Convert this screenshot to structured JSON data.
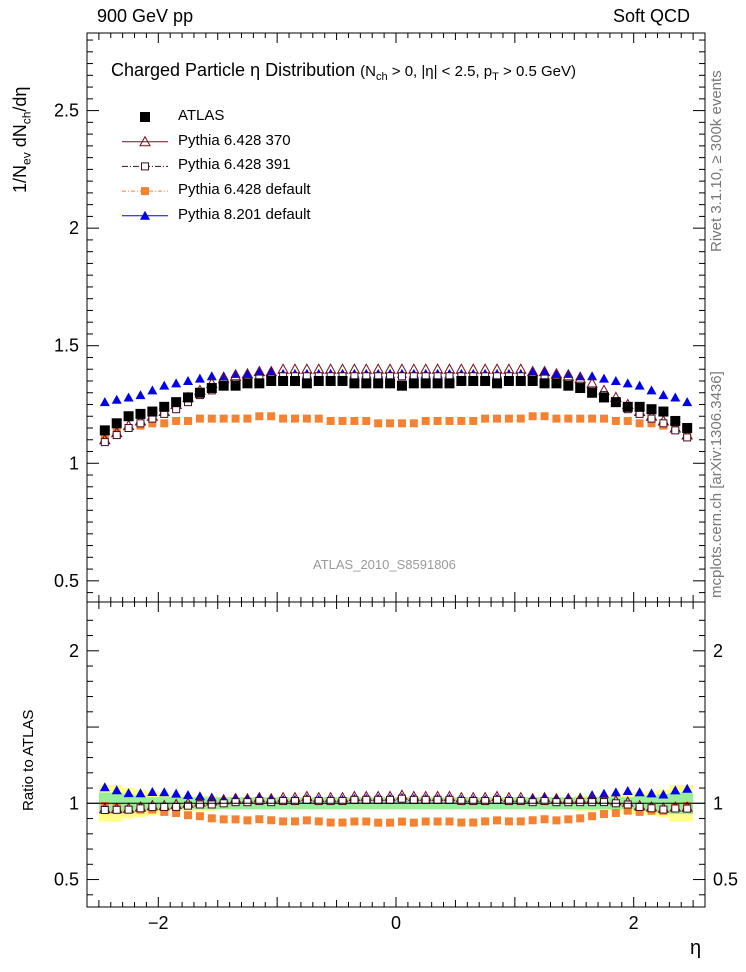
{
  "header": {
    "left": "900 GeV pp",
    "right": "Soft QCD"
  },
  "side_labels": {
    "top": "Rivet 3.1.10, ≥ 300k events",
    "bottom": "mcplots.cern.ch [arXiv:1306.3436]"
  },
  "title": {
    "main": "Charged Particle  η Distribution",
    "cut": "(N",
    "cut_sub1": "ch",
    "cut_mid": " > 0, |η| < 2.5, p",
    "cut_sub2": "T",
    "cut_end": " > 0.5 GeV)"
  },
  "watermark": "ATLAS_2010_S8591806",
  "axis_titles": {
    "main_y_pre": "1/N",
    "main_y_sub1": "ev",
    "main_y_mid": " dN",
    "main_y_sub2": "ch",
    "main_y_end": "/dη",
    "ratio_y": "Ratio to ATLAS",
    "x": "η"
  },
  "legend": [
    {
      "label": "ATLAS",
      "color": "#000000",
      "marker": "square-filled"
    },
    {
      "label": "Pythia 6.428 370",
      "color": "#7a0a1e",
      "marker": "triangle-open"
    },
    {
      "label": "Pythia 6.428 391",
      "color": "#4a0a20",
      "marker": "square-open"
    },
    {
      "label": "Pythia 6.428 default",
      "color": "#f58231",
      "marker": "square-filled"
    },
    {
      "label": "Pythia 8.201 default",
      "color": "#0000ee",
      "marker": "triangle-filled"
    }
  ],
  "chart_data": [
    {
      "type": "scatter",
      "panel": "main",
      "title": "Charged Particle  η Distribution",
      "xlabel": "η",
      "ylabel": "1/N_ev dN_ch/dη",
      "xlim": [
        -2.6,
        2.6
      ],
      "ylim": [
        0.41,
        2.83
      ],
      "yticks": [
        0.5,
        1,
        1.5,
        2,
        2.5
      ],
      "ytick_labels": [
        "0.5",
        "1",
        "1.5",
        "2",
        "2.5"
      ],
      "eta_range": [
        -2.45,
        2.45
      ],
      "n_points": 50,
      "series": [
        {
          "name": "ATLAS",
          "values": [
            1.14,
            1.17,
            1.2,
            1.21,
            1.22,
            1.24,
            1.26,
            1.28,
            1.3,
            1.32,
            1.33,
            1.33,
            1.34,
            1.34,
            1.35,
            1.35,
            1.35,
            1.34,
            1.35,
            1.35,
            1.35,
            1.34,
            1.34,
            1.34,
            1.34,
            1.33,
            1.34,
            1.34,
            1.34,
            1.34,
            1.35,
            1.35,
            1.35,
            1.34,
            1.35,
            1.35,
            1.35,
            1.34,
            1.34,
            1.33,
            1.32,
            1.3,
            1.28,
            1.26,
            1.24,
            1.24,
            1.23,
            1.22,
            1.18,
            1.15
          ]
        },
        {
          "name": "Pythia 6.428 370",
          "values": [
            1.1,
            1.13,
            1.16,
            1.18,
            1.2,
            1.22,
            1.25,
            1.28,
            1.31,
            1.34,
            1.36,
            1.37,
            1.38,
            1.39,
            1.39,
            1.4,
            1.4,
            1.4,
            1.4,
            1.4,
            1.4,
            1.4,
            1.4,
            1.4,
            1.4,
            1.4,
            1.4,
            1.4,
            1.4,
            1.4,
            1.4,
            1.4,
            1.4,
            1.4,
            1.4,
            1.4,
            1.39,
            1.39,
            1.38,
            1.37,
            1.36,
            1.34,
            1.31,
            1.28,
            1.25,
            1.22,
            1.2,
            1.18,
            1.15,
            1.12
          ]
        },
        {
          "name": "Pythia 6.428 391",
          "values": [
            1.09,
            1.12,
            1.15,
            1.17,
            1.19,
            1.21,
            1.23,
            1.26,
            1.29,
            1.31,
            1.33,
            1.34,
            1.35,
            1.36,
            1.36,
            1.37,
            1.37,
            1.37,
            1.37,
            1.37,
            1.37,
            1.37,
            1.37,
            1.37,
            1.37,
            1.37,
            1.37,
            1.37,
            1.37,
            1.37,
            1.37,
            1.37,
            1.37,
            1.37,
            1.37,
            1.37,
            1.36,
            1.36,
            1.35,
            1.34,
            1.33,
            1.31,
            1.29,
            1.26,
            1.23,
            1.21,
            1.19,
            1.17,
            1.14,
            1.11
          ]
        },
        {
          "name": "Pythia 6.428 default",
          "values": [
            1.12,
            1.14,
            1.15,
            1.16,
            1.17,
            1.17,
            1.18,
            1.18,
            1.19,
            1.19,
            1.19,
            1.19,
            1.19,
            1.2,
            1.2,
            1.19,
            1.19,
            1.19,
            1.19,
            1.18,
            1.18,
            1.18,
            1.18,
            1.17,
            1.17,
            1.17,
            1.17,
            1.18,
            1.18,
            1.18,
            1.18,
            1.18,
            1.19,
            1.19,
            1.19,
            1.19,
            1.2,
            1.2,
            1.19,
            1.19,
            1.19,
            1.19,
            1.19,
            1.18,
            1.18,
            1.17,
            1.17,
            1.16,
            1.15,
            1.13
          ]
        },
        {
          "name": "Pythia 8.201 default",
          "values": [
            1.26,
            1.27,
            1.28,
            1.29,
            1.31,
            1.33,
            1.34,
            1.35,
            1.36,
            1.37,
            1.37,
            1.38,
            1.38,
            1.39,
            1.39,
            1.38,
            1.38,
            1.38,
            1.38,
            1.38,
            1.38,
            1.38,
            1.38,
            1.38,
            1.38,
            1.38,
            1.38,
            1.38,
            1.38,
            1.38,
            1.38,
            1.38,
            1.38,
            1.38,
            1.38,
            1.38,
            1.39,
            1.39,
            1.38,
            1.38,
            1.37,
            1.37,
            1.36,
            1.35,
            1.34,
            1.33,
            1.31,
            1.29,
            1.28,
            1.26
          ]
        }
      ]
    },
    {
      "type": "scatter",
      "panel": "ratio",
      "xlabel": "η",
      "ylabel": "Ratio to ATLAS",
      "xlim": [
        -2.6,
        2.6
      ],
      "ylim": [
        0.32,
        2.32
      ],
      "yticks": [
        0.5,
        1,
        2
      ],
      "ytick_labels": [
        "0.5",
        "1",
        "2"
      ],
      "xticks": [
        -2,
        0,
        2
      ],
      "xtick_labels": [
        "−2",
        "0",
        "2"
      ],
      "band_stat_halfwidth": [
        0.07,
        0.07,
        0.06,
        0.05,
        0.04,
        0.04,
        0.04,
        0.04,
        0.04,
        0.04,
        0.04,
        0.04,
        0.04,
        0.04,
        0.04,
        0.04,
        0.04,
        0.04,
        0.04,
        0.04,
        0.04,
        0.04,
        0.04,
        0.04,
        0.04,
        0.04,
        0.04,
        0.04,
        0.04,
        0.04,
        0.04,
        0.04,
        0.04,
        0.04,
        0.04,
        0.04,
        0.04,
        0.04,
        0.04,
        0.04,
        0.04,
        0.04,
        0.04,
        0.04,
        0.04,
        0.05,
        0.05,
        0.06,
        0.07,
        0.07
      ],
      "band_total_halfwidth": [
        0.12,
        0.12,
        0.1,
        0.09,
        0.08,
        0.07,
        0.05,
        0.05,
        0.05,
        0.05,
        0.04,
        0.04,
        0.04,
        0.04,
        0.04,
        0.04,
        0.04,
        0.04,
        0.04,
        0.04,
        0.04,
        0.04,
        0.04,
        0.04,
        0.04,
        0.04,
        0.04,
        0.04,
        0.04,
        0.04,
        0.04,
        0.04,
        0.04,
        0.04,
        0.04,
        0.04,
        0.04,
        0.04,
        0.04,
        0.04,
        0.05,
        0.05,
        0.05,
        0.05,
        0.07,
        0.07,
        0.08,
        0.09,
        0.12,
        0.12
      ]
    }
  ]
}
